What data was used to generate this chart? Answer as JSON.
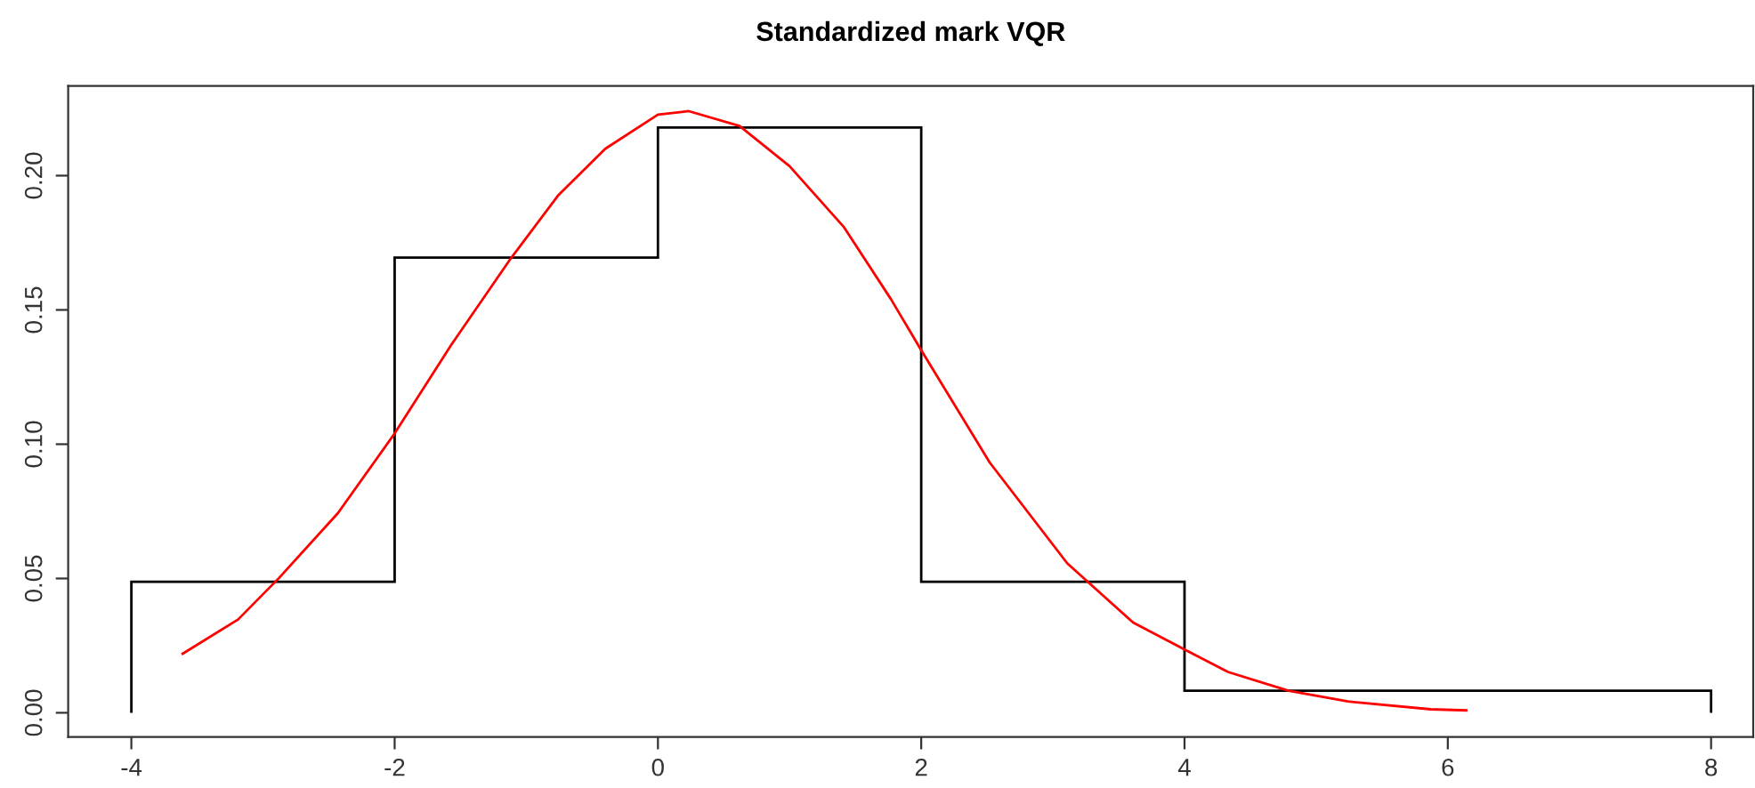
{
  "chart_data": {
    "type": "histogram",
    "title": "Standardized mark VQR",
    "bins": [
      -4,
      -2,
      0,
      2,
      4,
      8
    ],
    "values": [
      0.0488,
      0.1695,
      0.2179,
      0.0488,
      0.0082
    ],
    "color": "#000000",
    "series": [
      {
        "type": "line",
        "color": "#ff0000",
        "x": [
          -3.61,
          -3.19,
          -2.88,
          -2.43,
          -2.0,
          -1.57,
          -1.12,
          -0.76,
          -0.4,
          0.0,
          0.235,
          0.62,
          1.0,
          1.41,
          1.77,
          2.0,
          2.52,
          3.11,
          3.61,
          4.0,
          4.33,
          4.79,
          5.24,
          5.87,
          6.14
        ],
        "values": [
          0.022,
          0.0347,
          0.0501,
          0.0744,
          0.104,
          0.137,
          0.169,
          0.1925,
          0.21,
          0.2227,
          0.224,
          0.2185,
          0.2035,
          0.181,
          0.154,
          0.135,
          0.0932,
          0.0556,
          0.0336,
          0.0236,
          0.0152,
          0.0082,
          0.0042,
          0.0013,
          0.0009
        ]
      }
    ],
    "xlim": [
      -4.48,
      8.32
    ],
    "ylim": [
      -0.009,
      0.2334
    ],
    "xticks": [
      -4,
      -2,
      0,
      2,
      4,
      6,
      8
    ],
    "yticks": [
      {
        "value": 0,
        "label": "0.00"
      },
      {
        "value": 0.05,
        "label": "0.05"
      },
      {
        "value": 0.1,
        "label": "0.10"
      },
      {
        "value": 0.15,
        "label": "0.15"
      },
      {
        "value": 0.2,
        "label": "0.20"
      }
    ],
    "grid": false,
    "legend": false
  }
}
